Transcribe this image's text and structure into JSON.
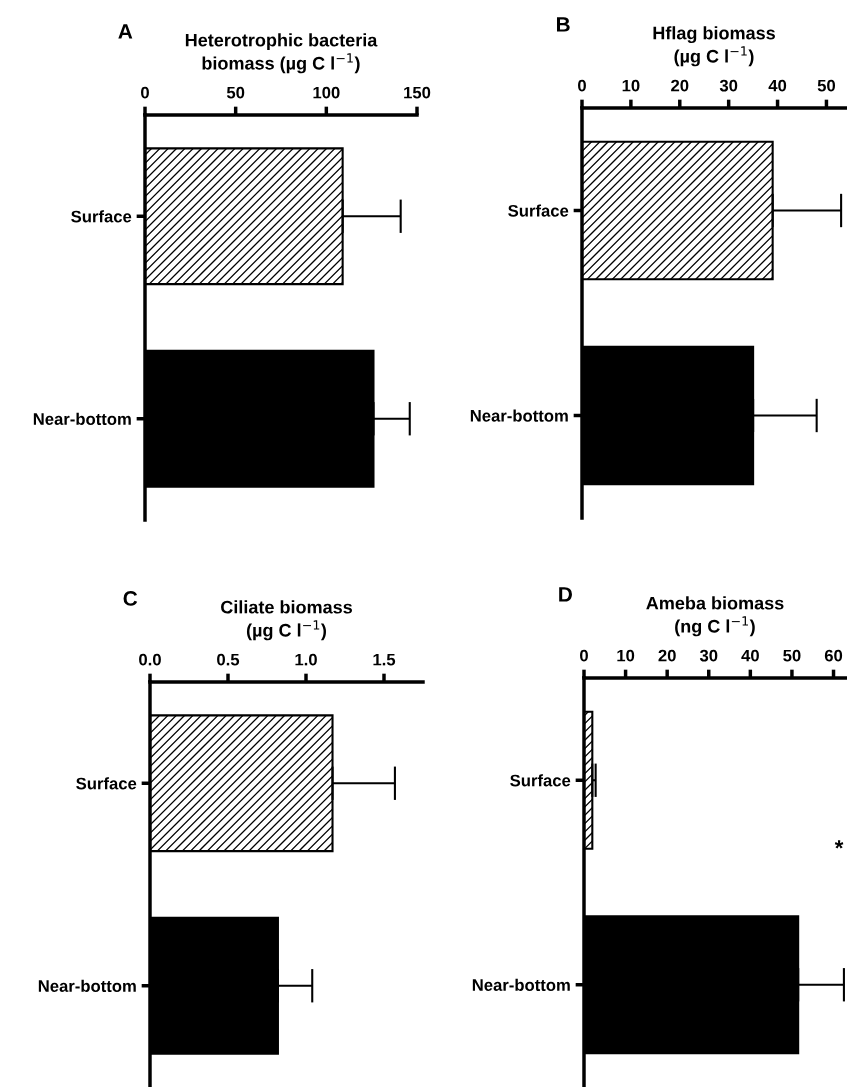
{
  "chart_data": [
    {
      "type": "bar",
      "orientation": "horizontal",
      "title": "A",
      "xlabel": "Heterotrophic bacteria\nbiomass (µg C l$^{−1}$)",
      "categories": [
        "Surface",
        "Near-bottom"
      ],
      "values": [
        109,
        126
      ],
      "errors": [
        32,
        20
      ],
      "colors": [
        "#ffffff",
        "#000000"
      ],
      "xlim": [
        0,
        150
      ],
      "xticks": [
        0,
        50,
        100,
        150
      ],
      "grid": false,
      "legend": false
    },
    {
      "type": "bar",
      "orientation": "horizontal",
      "title": "B",
      "xlabel": "Hflag biomass\n(µg C l$^{−1}$)",
      "categories": [
        "Surface",
        "Near-bottom"
      ],
      "values": [
        39,
        35
      ],
      "errors": [
        14,
        13
      ],
      "colors": [
        "#ffffff",
        "#000000"
      ],
      "xlim": [
        0,
        54
      ],
      "xticks": [
        0,
        10,
        20,
        30,
        40,
        50
      ],
      "grid": false,
      "legend": false
    },
    {
      "type": "bar",
      "orientation": "horizontal",
      "title": "C",
      "xlabel": "Ciliate biomass\n(µg C l$^{−1}$)",
      "categories": [
        "Surface",
        "Near-bottom"
      ],
      "values": [
        1.17,
        0.82
      ],
      "errors": [
        0.4,
        0.22
      ],
      "colors": [
        "#ffffff",
        "#000000"
      ],
      "xlim": [
        0,
        1.75
      ],
      "xticks": [
        {
          "value": 0,
          "label": "0.0"
        },
        0.5,
        {
          "value": 1,
          "label": "1.0"
        },
        1.5
      ],
      "grid": false,
      "legend": false
    },
    {
      "type": "bar",
      "orientation": "horizontal",
      "title": "D",
      "xlabel": "Ameba biomass\n(ng C l$^{−1}$)",
      "categories": [
        "Surface",
        "Near-bottom"
      ],
      "values": [
        2,
        51.5
      ],
      "errors": [
        0.8,
        11
      ],
      "colors": [
        "#ffffff",
        "#000000"
      ],
      "xlim": [
        0,
        63
      ],
      "xticks": [
        0,
        10,
        20,
        30,
        40,
        50,
        60
      ],
      "annotations": [
        "*"
      ],
      "grid": false,
      "legend": false
    }
  ]
}
